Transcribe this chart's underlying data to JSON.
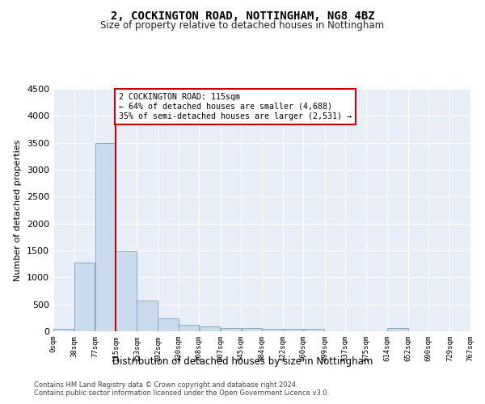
{
  "title": "2, COCKINGTON ROAD, NOTTINGHAM, NG8 4BZ",
  "subtitle": "Size of property relative to detached houses in Nottingham",
  "xlabel": "Distribution of detached houses by size in Nottingham",
  "ylabel": "Number of detached properties",
  "bar_color": "#ccdaed",
  "bar_edge_color": "#7aa0c4",
  "background_color": "#e8eef8",
  "grid_color": "#ffffff",
  "bins": [
    0,
    38,
    77,
    115,
    153,
    192,
    230,
    268,
    307,
    345,
    384,
    422,
    460,
    499,
    537,
    575,
    614,
    652,
    690,
    729,
    767
  ],
  "bin_labels": [
    "0sqm",
    "38sqm",
    "77sqm",
    "115sqm",
    "153sqm",
    "192sqm",
    "230sqm",
    "268sqm",
    "307sqm",
    "345sqm",
    "384sqm",
    "422sqm",
    "460sqm",
    "499sqm",
    "537sqm",
    "575sqm",
    "614sqm",
    "652sqm",
    "690sqm",
    "729sqm",
    "767sqm"
  ],
  "counts": [
    40,
    1270,
    3500,
    1480,
    575,
    240,
    115,
    85,
    65,
    55,
    50,
    45,
    40,
    0,
    0,
    0,
    55,
    0,
    0,
    0,
    0
  ],
  "property_sqm": 115,
  "vline_x": 115,
  "annotation_title": "2 COCKINGTON ROAD: 115sqm",
  "annotation_line1": "← 64% of detached houses are smaller (4,688)",
  "annotation_line2": "35% of semi-detached houses are larger (2,531) →",
  "annotation_box_color": "#ffffff",
  "annotation_border_color": "#cc0000",
  "vline_color": "#cc0000",
  "ylim": [
    0,
    4500
  ],
  "yticks": [
    0,
    500,
    1000,
    1500,
    2000,
    2500,
    3000,
    3500,
    4000,
    4500
  ],
  "footer1": "Contains HM Land Registry data © Crown copyright and database right 2024.",
  "footer2": "Contains public sector information licensed under the Open Government Licence v3.0."
}
